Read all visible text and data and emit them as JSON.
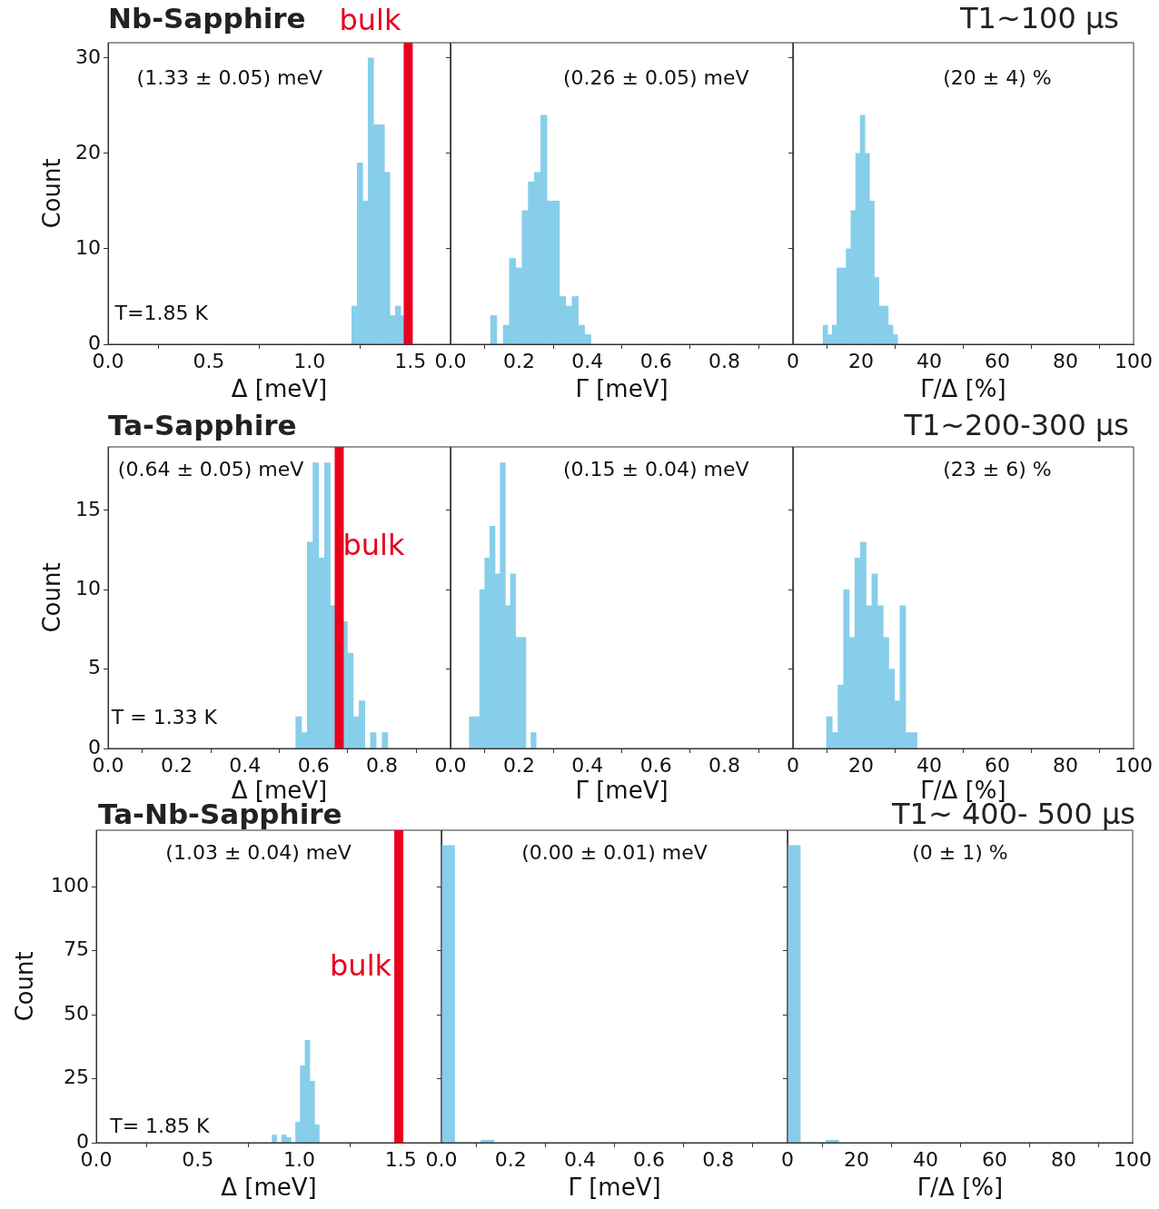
{
  "chart_data": [
    {
      "type": "histogram",
      "title": "Nb-Sapphire",
      "xlabel": "Δ [meV]",
      "ylabel": "Count",
      "bins": [
        1.21,
        1.237,
        1.264,
        1.291,
        1.318,
        1.345,
        1.372,
        1.399,
        1.426,
        1.453,
        1.48
      ],
      "values": [
        4,
        19,
        15,
        30,
        23,
        23,
        18,
        3,
        4,
        3
      ],
      "color": "#87ceeb",
      "xlim": [
        0,
        1.7
      ],
      "xticks": [
        {
          "value": 0,
          "label": "0.0"
        },
        {
          "value": 0.5,
          "label": "0.5"
        },
        {
          "value": 1,
          "label": "1.0"
        },
        {
          "value": 1.5,
          "label": "1.5"
        }
      ],
      "ylim": [
        0,
        31.6
      ],
      "yticks": [
        0,
        10,
        20,
        30
      ],
      "annotations": [
        "(1.33 ± 0.05) meV",
        "T=1.85 K"
      ],
      "ref_lines": [
        {
          "axis": "x",
          "value": 1.49,
          "label": "bulk",
          "color": "#e8001c"
        }
      ]
    },
    {
      "type": "histogram",
      "xlabel": "Γ [meV]",
      "bins": [
        0.117,
        0.135,
        0.154,
        0.172,
        0.19,
        0.209,
        0.227,
        0.245,
        0.263,
        0.282,
        0.3,
        0.318,
        0.337,
        0.355,
        0.373,
        0.392,
        0.41
      ],
      "values": [
        3,
        0,
        2,
        9,
        8,
        14,
        17,
        18,
        24,
        15,
        15,
        5,
        4,
        5,
        2,
        1
      ],
      "color": "#87ceeb",
      "xlim": [
        0,
        1
      ],
      "xticks": [
        {
          "value": 0,
          "label": "0.0"
        },
        {
          "value": 0.2,
          "label": "0.2"
        },
        {
          "value": 0.4,
          "label": "0.4"
        },
        {
          "value": 0.6,
          "label": "0.6"
        },
        {
          "value": 0.8,
          "label": "0.8"
        }
      ],
      "ylim": [
        0,
        31.6
      ],
      "yticks": [
        0,
        10,
        20,
        30
      ],
      "tick_labels": "x",
      "annotations": [
        "(0.26 ± 0.05) meV"
      ]
    },
    {
      "type": "histogram",
      "title": "T1~100 μs",
      "xlabel": "Γ/Δ [%]",
      "bins": [
        8.8,
        10.2,
        11.5,
        12.9,
        14.3,
        15.6,
        17.0,
        18.4,
        19.8,
        21.1,
        22.5,
        23.9,
        25.2,
        26.6,
        28.0,
        29.4,
        30.7
      ],
      "values": [
        2,
        1,
        2,
        8,
        8,
        10,
        14,
        20,
        24,
        20,
        15,
        7,
        4,
        4,
        2,
        1
      ],
      "color": "#87ceeb",
      "xlim": [
        0,
        100
      ],
      "xticks": [
        0,
        20,
        40,
        60,
        80,
        100
      ],
      "ylim": [
        0,
        31.6
      ],
      "yticks": [
        0,
        10,
        20,
        30
      ],
      "tick_labels": "x",
      "annotations": [
        "(20 ± 4) %"
      ]
    },
    {
      "type": "histogram",
      "title": "Ta-Sapphire",
      "xlabel": "Δ [meV]",
      "ylabel": "Count",
      "bins": [
        0.548,
        0.565,
        0.582,
        0.598,
        0.615,
        0.632,
        0.649,
        0.666,
        0.682,
        0.699,
        0.716,
        0.733,
        0.75,
        0.766,
        0.783,
        0.8,
        0.817
      ],
      "values": [
        2,
        1,
        13,
        18,
        12,
        18,
        9,
        null,
        8,
        6,
        2,
        3,
        0,
        1,
        0,
        1
      ],
      "color": "#87ceeb",
      "xlim": [
        0,
        1
      ],
      "xticks": [
        {
          "value": 0,
          "label": "0.0"
        },
        {
          "value": 0.2,
          "label": "0.2"
        },
        {
          "value": 0.4,
          "label": "0.4"
        },
        {
          "value": 0.6,
          "label": "0.6"
        },
        {
          "value": 0.8,
          "label": "0.8"
        }
      ],
      "ylim": [
        0,
        19
      ],
      "yticks": [
        0,
        5,
        10,
        15
      ],
      "annotations": [
        "(0.64 ± 0.05) meV",
        "T = 1.33 K"
      ],
      "ref_lines": [
        {
          "axis": "x",
          "value": 0.675,
          "label": "bulk",
          "color": "#e8001c"
        }
      ]
    },
    {
      "type": "histogram",
      "xlabel": "Γ [meV]",
      "bins": [
        0.055,
        0.07,
        0.085,
        0.1,
        0.115,
        0.13,
        0.145,
        0.16,
        0.175,
        0.19,
        0.205,
        0.22,
        0.235,
        0.25
      ],
      "values": [
        2,
        2,
        10,
        12,
        14,
        11,
        18,
        9,
        11,
        7,
        7,
        0,
        1
      ],
      "color": "#87ceeb",
      "xlim": [
        0,
        1
      ],
      "xticks": [
        {
          "value": 0,
          "label": "0.0"
        },
        {
          "value": 0.2,
          "label": "0.2"
        },
        {
          "value": 0.4,
          "label": "0.4"
        },
        {
          "value": 0.6,
          "label": "0.6"
        },
        {
          "value": 0.8,
          "label": "0.8"
        }
      ],
      "ylim": [
        0,
        19
      ],
      "yticks": [
        0,
        5,
        10,
        15
      ],
      "tick_labels": "x",
      "annotations": [
        "(0.15 ± 0.04) meV"
      ]
    },
    {
      "type": "histogram",
      "title": "T1~200-300 μs",
      "xlabel": "Γ/Δ [%]",
      "bins": [
        9.9,
        11.5,
        13.2,
        14.9,
        16.5,
        18.2,
        19.8,
        21.5,
        23.2,
        24.8,
        26.5,
        28.1,
        29.8,
        31.4,
        33.1,
        34.8,
        36.4
      ],
      "values": [
        2,
        1,
        4,
        10,
        7,
        12,
        13,
        9,
        11,
        9,
        7,
        5,
        3,
        9,
        1,
        1
      ],
      "color": "#87ceeb",
      "xlim": [
        0,
        100
      ],
      "xticks": [
        0,
        20,
        40,
        60,
        80,
        100
      ],
      "ylim": [
        0,
        19
      ],
      "yticks": [
        0,
        5,
        10,
        15
      ],
      "tick_labels": "x",
      "annotations": [
        "(23 ± 6) %"
      ]
    },
    {
      "type": "histogram",
      "title": "Ta-Nb-Sapphire",
      "xlabel": "Δ [meV]",
      "ylabel": "Count",
      "bins": [
        0.866,
        0.889,
        0.912,
        0.936,
        0.959,
        0.982,
        1.005,
        1.028,
        1.052,
        1.075,
        1.098
      ],
      "values": [
        3,
        0,
        3,
        2,
        0,
        8,
        30,
        40,
        24,
        7
      ],
      "color": "#87ceeb",
      "xlim": [
        0,
        1.7
      ],
      "xticks": [
        {
          "value": 0,
          "label": "0.0"
        },
        {
          "value": 0.5,
          "label": "0.5"
        },
        {
          "value": 1,
          "label": "1.0"
        },
        {
          "value": 1.5,
          "label": "1.5"
        }
      ],
      "ylim": [
        0,
        122
      ],
      "yticks": [
        0,
        25,
        50,
        75,
        100
      ],
      "annotations": [
        "(1.03 ± 0.04) meV",
        "T= 1.85 K"
      ],
      "ref_lines": [
        {
          "axis": "x",
          "value": 1.49,
          "label": "bulk",
          "color": "#e8001c"
        }
      ]
    },
    {
      "type": "histogram",
      "xlabel": "Γ [meV]",
      "bins": [
        0,
        0.038,
        0.076,
        0.114,
        0.152
      ],
      "values": [
        116,
        0,
        0,
        1
      ],
      "color": "#87ceeb",
      "xlim": [
        0,
        1
      ],
      "xticks": [
        {
          "value": 0,
          "label": "0.0"
        },
        {
          "value": 0.2,
          "label": "0.2"
        },
        {
          "value": 0.4,
          "label": "0.4"
        },
        {
          "value": 0.6,
          "label": "0.6"
        },
        {
          "value": 0.8,
          "label": "0.8"
        }
      ],
      "ylim": [
        0,
        122
      ],
      "yticks": [
        0,
        25,
        50,
        75,
        100
      ],
      "tick_labels": "x",
      "annotations": [
        "(0.00 ± 0.01) meV"
      ]
    },
    {
      "type": "histogram",
      "title": "T1~ 400- 500 μs",
      "xlabel": "Γ/Δ [%]",
      "bins": [
        0,
        3.7,
        7.4,
        11.1,
        14.8
      ],
      "values": [
        116,
        0,
        0,
        1
      ],
      "color": "#87ceeb",
      "xlim": [
        0,
        100
      ],
      "xticks": [
        0,
        20,
        40,
        60,
        80,
        100
      ],
      "ylim": [
        0,
        122
      ],
      "yticks": [
        0,
        25,
        50,
        75,
        100
      ],
      "tick_labels": "x",
      "annotations": [
        "(0 ± 1) %"
      ]
    }
  ]
}
